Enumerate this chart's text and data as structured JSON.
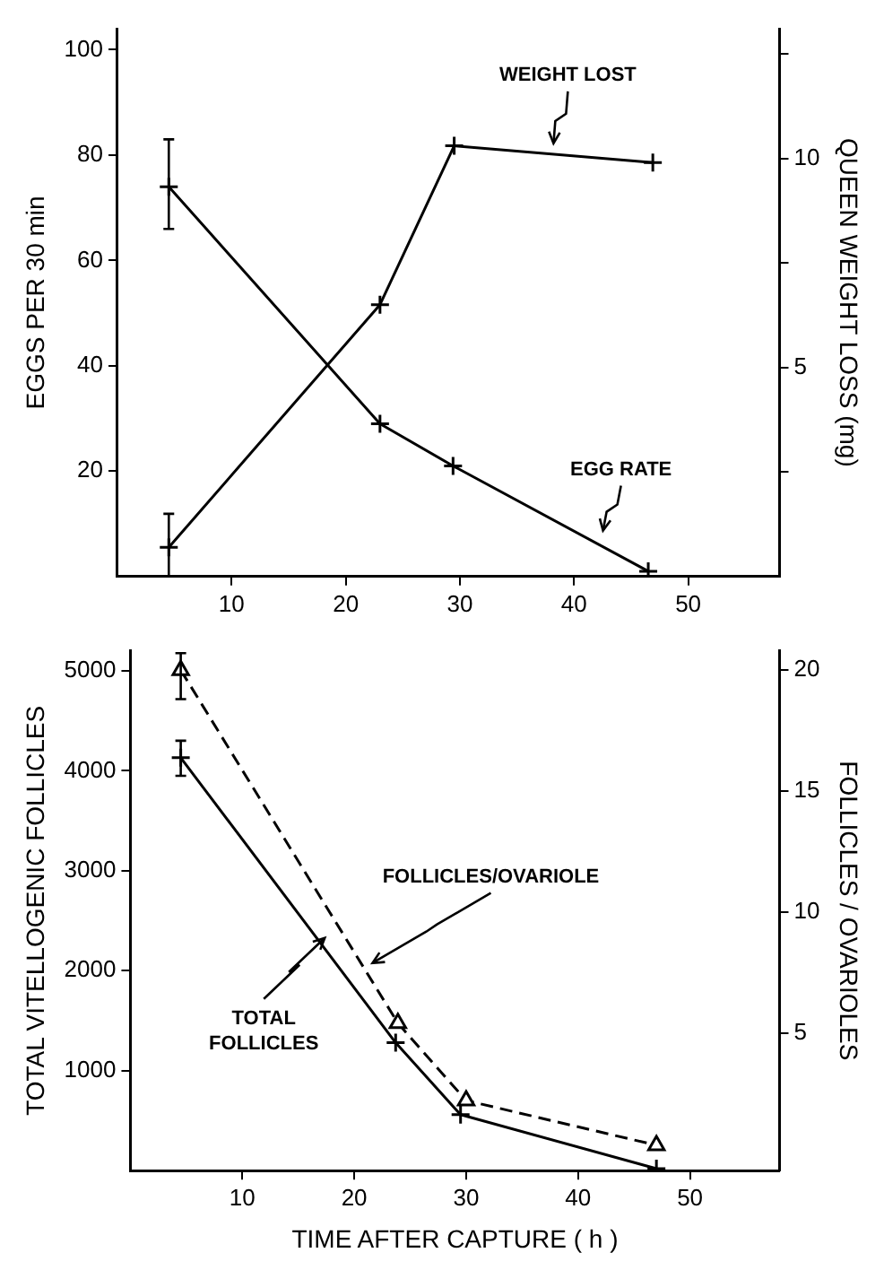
{
  "chart_data": [
    {
      "type": "line",
      "ylabel": "EGGS PER 30 min",
      "y2label": "QUEEN WEIGHT LOSS (mg)",
      "xlim": [
        0,
        58
      ],
      "xticks": [
        10,
        20,
        30,
        40,
        50
      ],
      "ylim": [
        0,
        104
      ],
      "yticks": [
        20,
        40,
        60,
        80,
        100
      ],
      "y2lim": [
        0,
        13.1
      ],
      "y2ticks": [
        {
          "value": 2.5,
          "label": null
        },
        5,
        {
          "value": 7.5,
          "label": null
        },
        10,
        {
          "value": 12.5,
          "label": null
        }
      ],
      "grid": false,
      "legend": false,
      "marker": "cross",
      "series": [
        {
          "name": "EGG RATE",
          "color": "#000000",
          "x": [
            4.5,
            23,
            29.4,
            46.5
          ],
          "values": [
            74,
            29,
            21,
            1
          ],
          "errors": [
            [
              66,
              83
            ],
            null,
            null,
            null
          ]
        },
        {
          "name": "WEIGHT LOST",
          "color": "#000000",
          "axis": "y2",
          "x": [
            4.5,
            23,
            29.5,
            46.9
          ],
          "values": [
            0.7,
            6.5,
            10.3,
            9.9
          ],
          "errors": [
            [
              0,
              1.5
            ],
            null,
            null,
            null
          ]
        }
      ]
    },
    {
      "type": "line",
      "xlabel": "TIME AFTER CAPTURE ( h )",
      "ylabel": "TOTAL VITELLOGENIC FOLLICLES",
      "y2label": "FOLLICLES / OVARIOLES",
      "xlim": [
        0,
        58
      ],
      "xticks": [
        10,
        20,
        30,
        40,
        50
      ],
      "ylim": [
        0,
        5200
      ],
      "yticks": [
        1000,
        2000,
        3000,
        4000,
        5000
      ],
      "y2lim": [
        -0.7,
        20.8
      ],
      "y2ticks": [
        5,
        10,
        15,
        20
      ],
      "grid": false,
      "legend": false,
      "series": [
        {
          "name": "TOTAL FOLLICLES",
          "color": "#000000",
          "marker": "cross",
          "x": [
            4.5,
            23.7,
            29.5,
            47
          ],
          "values": [
            4130,
            1280,
            560,
            20
          ],
          "errors": [
            [
              3950,
              4300
            ],
            null,
            null,
            null
          ]
        },
        {
          "name": "FOLLICLES/OVARIOLE",
          "color": "#000000",
          "marker": "triangle",
          "line_style": "dashed",
          "axis": "y2",
          "x": [
            4.5,
            23.9,
            30,
            47
          ],
          "values": [
            20,
            5.4,
            2.2,
            0.35
          ],
          "errors": [
            [
              18.8,
              20.7
            ],
            null,
            null,
            null
          ]
        }
      ]
    }
  ]
}
